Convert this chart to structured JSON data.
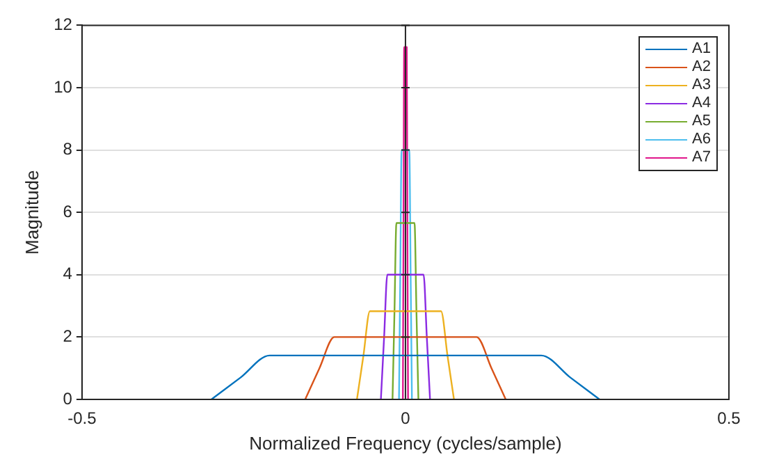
{
  "chart_data": {
    "type": "line",
    "xlabel": "Normalized Frequency (cycles/sample)",
    "ylabel": "Magnitude",
    "xlim": [
      -0.5,
      0.5
    ],
    "xticks": [
      -0.5,
      0,
      0.5
    ],
    "ylim": [
      0,
      12
    ],
    "yticks": [
      0,
      2,
      4,
      6,
      8,
      10,
      12
    ],
    "grid": "y",
    "legend": "top right",
    "marker": "none",
    "line_style": "solid",
    "ref_lines": [
      {
        "axis": "x",
        "value": 0,
        "color": "#262626"
      }
    ],
    "series": [
      {
        "name": "A1",
        "color": "#0072bd",
        "x": [
          -0.3,
          -0.255,
          -0.21,
          0.21,
          0.255,
          0.3
        ],
        "values": [
          0,
          0.7,
          1.41,
          1.41,
          0.7,
          0
        ]
      },
      {
        "name": "A2",
        "color": "#d95319",
        "x": [
          -0.155,
          -0.133,
          -0.11,
          0.11,
          0.133,
          0.155
        ],
        "values": [
          0,
          1.0,
          2.0,
          2.0,
          1.0,
          0
        ]
      },
      {
        "name": "A3",
        "color": "#edb120",
        "x": [
          -0.075,
          -0.065,
          -0.055,
          0.055,
          0.065,
          0.075
        ],
        "values": [
          0,
          1.4,
          2.83,
          2.83,
          1.4,
          0
        ]
      },
      {
        "name": "A4",
        "color": "#8b2be2",
        "x": [
          -0.038,
          -0.033,
          -0.028,
          0.028,
          0.033,
          0.038
        ],
        "values": [
          0,
          2.0,
          4.0,
          4.0,
          2.0,
          0
        ]
      },
      {
        "name": "A5",
        "color": "#77ac30",
        "x": [
          -0.02,
          -0.017,
          -0.014,
          0.014,
          0.017,
          0.02
        ],
        "values": [
          0,
          2.8,
          5.66,
          5.66,
          2.8,
          0
        ]
      },
      {
        "name": "A6",
        "color": "#4dbeee",
        "x": [
          -0.01,
          -0.008,
          -0.006,
          0.006,
          0.008,
          0.01
        ],
        "values": [
          0,
          4.0,
          8.0,
          8.0,
          4.0,
          0
        ]
      },
      {
        "name": "A7",
        "color": "#e0168c",
        "x": [
          -0.004,
          -0.003,
          -0.002,
          0.002,
          0.003,
          0.004
        ],
        "values": [
          0,
          5.6,
          11.3,
          11.3,
          5.6,
          0
        ]
      }
    ]
  }
}
